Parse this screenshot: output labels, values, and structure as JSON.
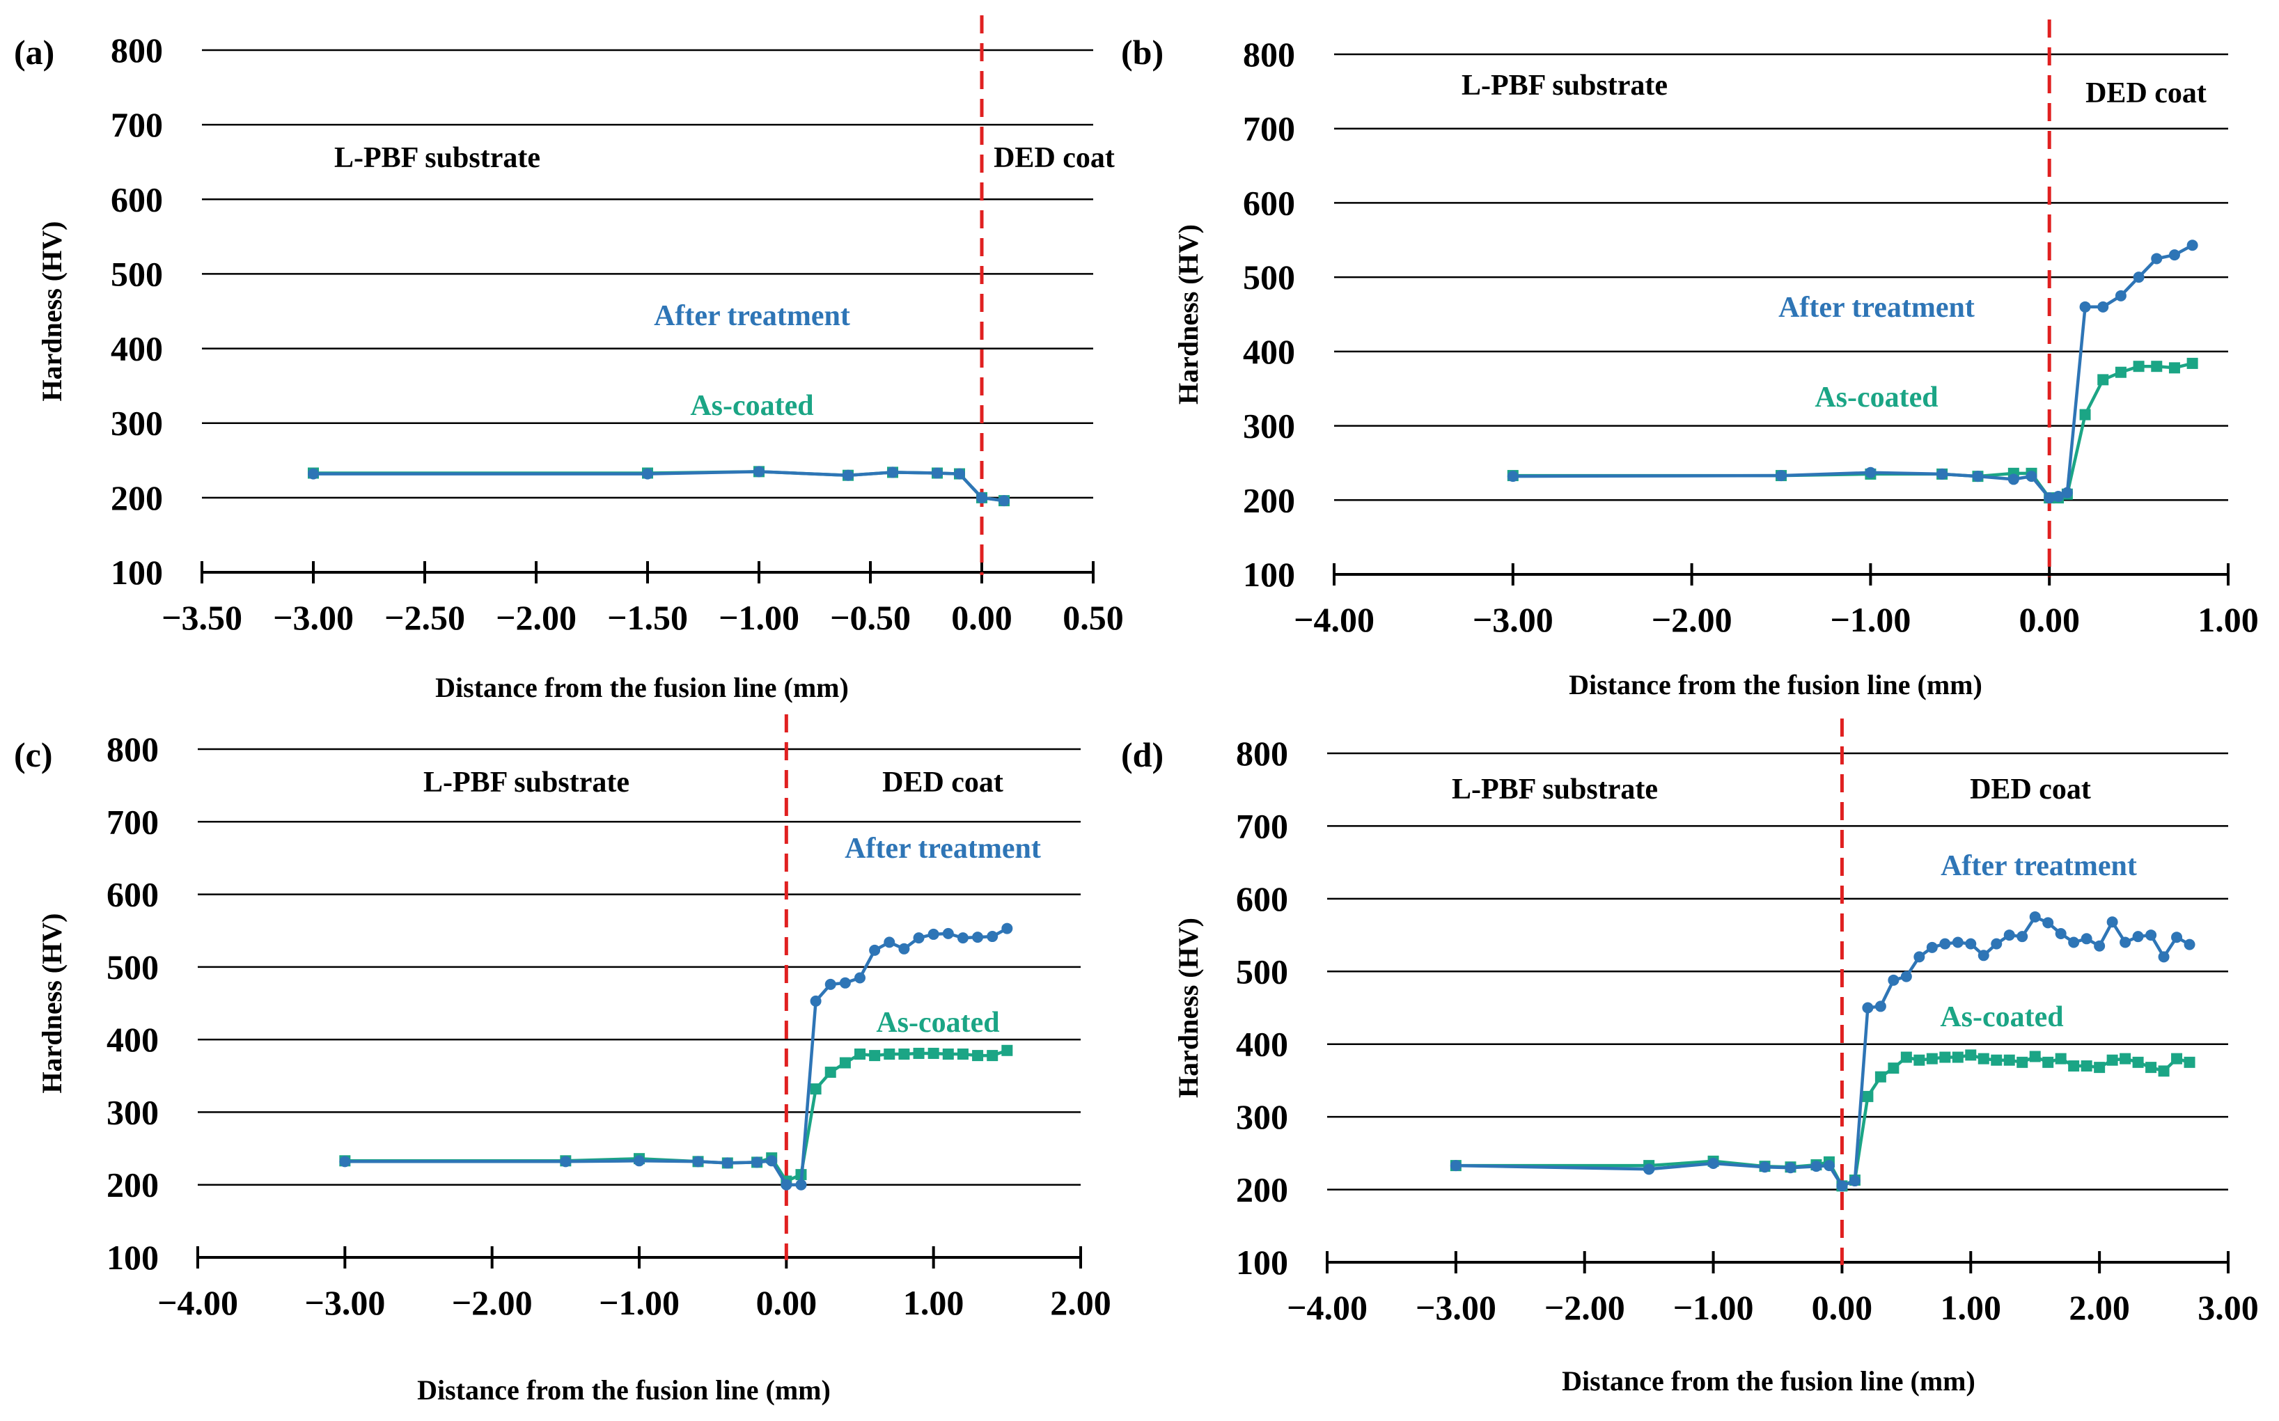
{
  "colors": {
    "after_treatment": "#2E75B6",
    "as_coated": "#1BA585",
    "fusion_line": "#E02020",
    "grid": "#000000"
  },
  "chart_data": [
    {
      "type": "line",
      "panel_label": "(a)",
      "xlabel": "Distance from the fusion line  (mm)",
      "ylabel": "Hardness (HV)",
      "xlim": [
        -3.5,
        0.5
      ],
      "ylim": [
        100,
        800
      ],
      "x_ticks": [
        -3.5,
        -3.0,
        -2.5,
        -2.0,
        -1.5,
        -1.0,
        -0.5,
        0.0,
        0.5
      ],
      "x_tick_labels": [
        "−3.50",
        "−3.00",
        "−2.50",
        "−2.00",
        "−1.50",
        "−1.00",
        "−0.50",
        "0.00",
        "0.50"
      ],
      "y_ticks": [
        100,
        200,
        300,
        400,
        500,
        600,
        700,
        800
      ],
      "y_tick_labels": [
        "100",
        "200",
        "300",
        "400",
        "500",
        "600",
        "700",
        "800"
      ],
      "fusion_line_x": 0,
      "region_labels": [
        "L-PBF substrate",
        "DED coat"
      ],
      "series": [
        {
          "name": "After treatment",
          "marker": "circle",
          "x": [
            -3.0,
            -1.5,
            -1.0,
            -0.6,
            -0.4,
            -0.2,
            -0.1,
            0.0,
            0.1
          ],
          "y": [
            232,
            232,
            235,
            230,
            234,
            233,
            232,
            200,
            196
          ]
        },
        {
          "name": "As-coated",
          "marker": "square",
          "x": [
            -3.0,
            -1.5,
            -1.0,
            -0.6,
            -0.4,
            -0.2,
            -0.1,
            0.0,
            0.1
          ],
          "y": [
            233,
            233,
            235,
            230,
            234,
            233,
            232,
            200,
            196
          ]
        }
      ]
    },
    {
      "type": "line",
      "panel_label": "(b)",
      "xlabel": "Distance from the fusion line  (mm)",
      "ylabel": "Hardness (HV)",
      "xlim": [
        -4.0,
        1.0
      ],
      "ylim": [
        100,
        800
      ],
      "x_ticks": [
        -4.0,
        -3.0,
        -2.0,
        -1.0,
        0.0,
        1.0
      ],
      "x_tick_labels": [
        "−4.00",
        "−3.00",
        "−2.00",
        "−1.00",
        "0.00",
        "1.00"
      ],
      "y_ticks": [
        100,
        200,
        300,
        400,
        500,
        600,
        700,
        800
      ],
      "y_tick_labels": [
        "100",
        "200",
        "300",
        "400",
        "500",
        "600",
        "700",
        "800"
      ],
      "fusion_line_x": 0,
      "region_labels": [
        "L-PBF substrate",
        "DED coat"
      ],
      "series": [
        {
          "name": "After treatment",
          "marker": "circle",
          "x": [
            -3.0,
            -1.5,
            -1.0,
            -0.6,
            -0.4,
            -0.2,
            -0.1,
            0.0,
            0.05,
            0.1,
            0.2,
            0.3,
            0.4,
            0.5,
            0.6,
            0.7,
            0.8
          ],
          "y": [
            232,
            233,
            237,
            235,
            232,
            228,
            232,
            203,
            205,
            210,
            460,
            460,
            475,
            500,
            525,
            530,
            543
          ]
        },
        {
          "name": "As-coated",
          "marker": "square",
          "x": [
            -3.0,
            -1.5,
            -1.0,
            -0.6,
            -0.4,
            -0.2,
            -0.1,
            0.0,
            0.05,
            0.1,
            0.2,
            0.3,
            0.4,
            0.5,
            0.6,
            0.7,
            0.8
          ],
          "y": [
            233,
            233,
            235,
            235,
            232,
            236,
            236,
            203,
            203,
            208,
            315,
            362,
            372,
            380,
            380,
            378,
            384
          ]
        }
      ]
    },
    {
      "type": "line",
      "panel_label": "(c)",
      "xlabel": "Distance from the fusion line  (mm)",
      "ylabel": "Hardness (HV)",
      "xlim": [
        -4.0,
        2.0
      ],
      "ylim": [
        100,
        800
      ],
      "x_ticks": [
        -4.0,
        -3.0,
        -2.0,
        -1.0,
        0.0,
        1.0,
        2.0
      ],
      "x_tick_labels": [
        "−4.00",
        "−3.00",
        "−2.00",
        "−1.00",
        "0.00",
        "1.00",
        "2.00"
      ],
      "y_ticks": [
        100,
        200,
        300,
        400,
        500,
        600,
        700,
        800
      ],
      "y_tick_labels": [
        "100",
        "200",
        "300",
        "400",
        "500",
        "600",
        "700",
        "800"
      ],
      "fusion_line_x": 0,
      "region_labels": [
        "L-PBF substrate",
        "DED coat"
      ],
      "series": [
        {
          "name": "After treatment",
          "marker": "circle",
          "x": [
            -3.0,
            -1.5,
            -1.0,
            -0.6,
            -0.4,
            -0.2,
            -0.1,
            0.0,
            0.1,
            0.2,
            0.3,
            0.4,
            0.5,
            0.6,
            0.7,
            0.8,
            0.9,
            1.0,
            1.1,
            1.2,
            1.3,
            1.4,
            1.5
          ],
          "y": [
            232,
            232,
            233,
            232,
            230,
            231,
            233,
            200,
            200,
            453,
            476,
            478,
            485,
            523,
            534,
            525,
            540,
            545,
            546,
            540,
            541,
            542,
            553
          ]
        },
        {
          "name": "As-coated",
          "marker": "square",
          "x": [
            -3.0,
            -1.5,
            -1.0,
            -0.6,
            -0.4,
            -0.2,
            -0.1,
            0.0,
            0.1,
            0.2,
            0.3,
            0.4,
            0.5,
            0.6,
            0.7,
            0.8,
            0.9,
            1.0,
            1.1,
            1.2,
            1.3,
            1.4,
            1.5
          ],
          "y": [
            233,
            233,
            236,
            232,
            230,
            231,
            237,
            205,
            214,
            332,
            355,
            368,
            380,
            378,
            380,
            380,
            381,
            381,
            380,
            380,
            378,
            378,
            385
          ]
        }
      ]
    },
    {
      "type": "line",
      "panel_label": "(d)",
      "xlabel": "Distance from the fusion line (mm)",
      "ylabel": "Hardness (HV)",
      "xlim": [
        -4.0,
        3.0
      ],
      "ylim": [
        100,
        800
      ],
      "x_ticks": [
        -4.0,
        -3.0,
        -2.0,
        -1.0,
        0.0,
        1.0,
        2.0,
        3.0
      ],
      "x_tick_labels": [
        "−4.00",
        "−3.00",
        "−2.00",
        "−1.00",
        "0.00",
        "1.00",
        "2.00",
        "3.00"
      ],
      "y_ticks": [
        100,
        200,
        300,
        400,
        500,
        600,
        700,
        800
      ],
      "y_tick_labels": [
        "100",
        "200",
        "300",
        "400",
        "500",
        "600",
        "700",
        "800"
      ],
      "fusion_line_x": 0,
      "region_labels": [
        "L-PBF substrate",
        "DED coat"
      ],
      "series": [
        {
          "name": "After treatment",
          "marker": "circle",
          "x": [
            -3.0,
            -1.5,
            -1.0,
            -0.6,
            -0.4,
            -0.2,
            -0.1,
            0.0,
            0.1,
            0.2,
            0.3,
            0.4,
            0.5,
            0.6,
            0.7,
            0.8,
            0.9,
            1.0,
            1.1,
            1.2,
            1.3,
            1.4,
            1.5,
            1.6,
            1.7,
            1.8,
            1.9,
            2.0,
            2.1,
            2.2,
            2.3,
            2.4,
            2.5,
            2.6,
            2.7
          ],
          "y": [
            233,
            228,
            236,
            231,
            230,
            232,
            233,
            205,
            212,
            450,
            452,
            488,
            493,
            520,
            533,
            538,
            540,
            538,
            522,
            538,
            550,
            548,
            575,
            567,
            552,
            540,
            545,
            535,
            568,
            540,
            548,
            550,
            520,
            547,
            537
          ]
        },
        {
          "name": "As-coated",
          "marker": "square",
          "x": [
            -3.0,
            -1.5,
            -1.0,
            -0.6,
            -0.4,
            -0.2,
            -0.1,
            0.0,
            0.1,
            0.2,
            0.3,
            0.4,
            0.5,
            0.6,
            0.7,
            0.8,
            0.9,
            1.0,
            1.1,
            1.2,
            1.3,
            1.4,
            1.5,
            1.6,
            1.7,
            1.8,
            1.9,
            2.0,
            2.1,
            2.2,
            2.3,
            2.4,
            2.5,
            2.6,
            2.7
          ],
          "y": [
            233,
            233,
            239,
            232,
            231,
            234,
            238,
            205,
            213,
            328,
            355,
            367,
            382,
            378,
            380,
            382,
            382,
            385,
            380,
            378,
            378,
            375,
            383,
            375,
            380,
            370,
            370,
            368,
            378,
            380,
            375,
            368,
            363,
            380,
            375
          ]
        }
      ]
    }
  ]
}
